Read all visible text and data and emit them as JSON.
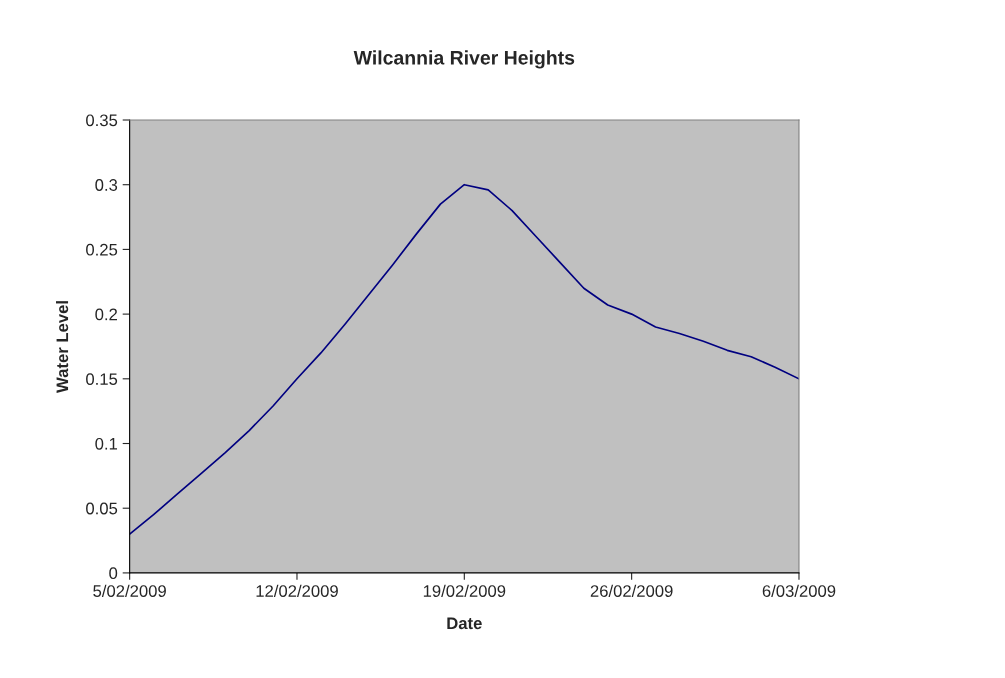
{
  "chart_data": {
    "type": "line",
    "title": "Wilcannia River Heights",
    "xlabel": "Date",
    "ylabel": "Water Level",
    "categories": [
      "5/02/2009",
      null,
      null,
      null,
      null,
      null,
      null,
      "12/02/2009",
      null,
      null,
      null,
      null,
      null,
      null,
      "19/02/2009",
      null,
      null,
      null,
      null,
      null,
      null,
      "26/02/2009",
      null,
      null,
      null,
      null,
      null,
      null,
      "6/03/2009"
    ],
    "series": [
      {
        "color": "#000080",
        "values": [
          0.03,
          0.045,
          0.061,
          0.077,
          0.093,
          0.11,
          0.129,
          0.15,
          0.17,
          0.192,
          0.215,
          0.238,
          0.262,
          0.285,
          0.3,
          0.296,
          0.28,
          0.26,
          0.24,
          0.22,
          0.207,
          0.2,
          0.19,
          0.185,
          0.179,
          0.172,
          0.167,
          0.159,
          0.15
        ]
      }
    ],
    "ylim": [
      0,
      0.35
    ],
    "yticks": [
      0,
      0.05,
      0.1,
      0.15,
      0.2,
      0.25,
      0.3,
      0.35
    ],
    "grid": false,
    "marker": "none",
    "line_style": "solid"
  }
}
